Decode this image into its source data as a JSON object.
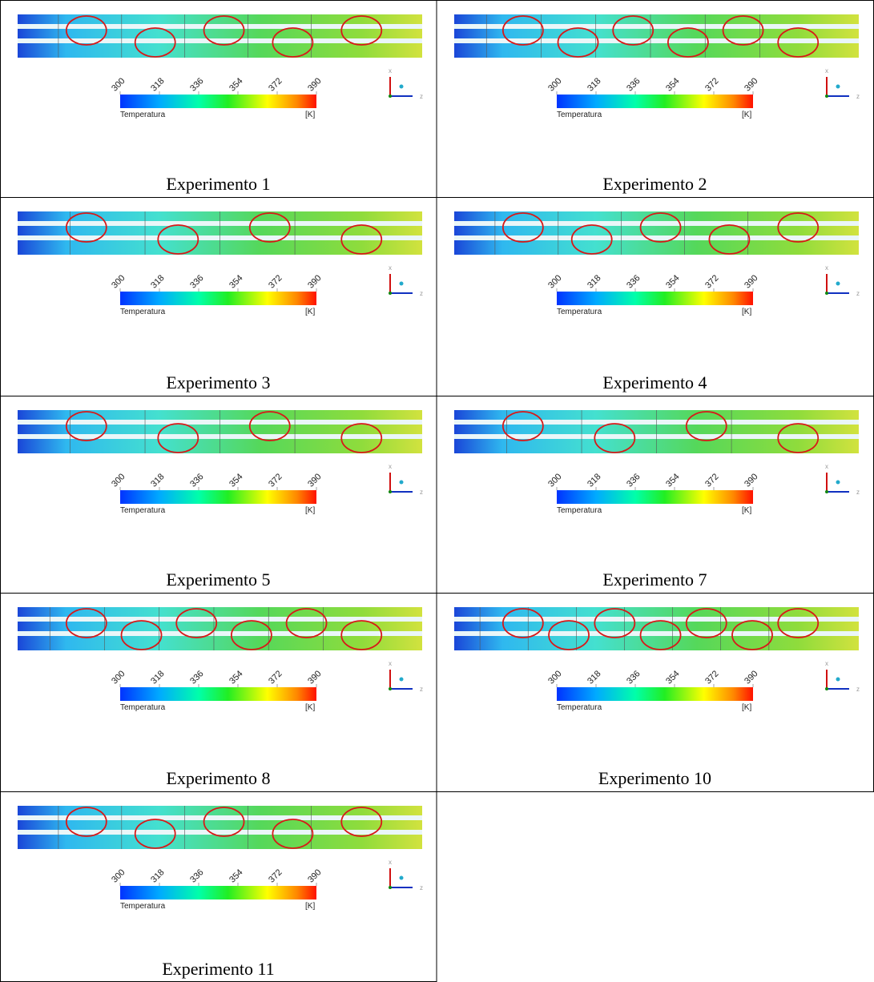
{
  "cells": [
    {
      "caption": "Experimento 1",
      "ticks": [
        300,
        318,
        336,
        354,
        372,
        390
      ],
      "legend_label": "Temperatura",
      "unit": "[K]",
      "axis_x": "x",
      "axis_z": "z"
    },
    {
      "caption": "Experimento 2",
      "ticks": [
        300,
        318,
        336,
        354,
        372,
        390
      ],
      "legend_label": "Temperatura",
      "unit": "[K]",
      "axis_x": "x",
      "axis_z": "z"
    },
    {
      "caption": "Experimento 3",
      "ticks": [
        300,
        318,
        336,
        354,
        372,
        390
      ],
      "legend_label": "Temperatura",
      "unit": "[K]",
      "axis_x": "x",
      "axis_z": "z"
    },
    {
      "caption": "Experimento 4",
      "ticks": [
        300,
        318,
        336,
        354,
        372,
        390
      ],
      "legend_label": "Temperatura",
      "unit": "[K]",
      "axis_x": "x",
      "axis_z": "z"
    },
    {
      "caption": "Experimento 5",
      "ticks": [
        300,
        318,
        336,
        354,
        372,
        390
      ],
      "legend_label": "Temperatura",
      "unit": "[K]",
      "axis_x": "x",
      "axis_z": "z"
    },
    {
      "caption": "Experimento 7",
      "ticks": [
        300,
        318,
        336,
        354,
        372,
        390
      ],
      "legend_label": "Temperatura",
      "unit": "[K]",
      "axis_x": "x",
      "axis_z": "z"
    },
    {
      "caption": "Experimento 8",
      "ticks": [
        300,
        318,
        336,
        354,
        372,
        390
      ],
      "legend_label": "Temperatura",
      "unit": "[K]",
      "axis_x": "x",
      "axis_z": "z"
    },
    {
      "caption": "Experimento 10",
      "ticks": [
        300,
        318,
        336,
        354,
        372,
        390
      ],
      "legend_label": "Temperatura",
      "unit": "[K]",
      "axis_x": "x",
      "axis_z": "z"
    },
    {
      "caption": "Experimento 11",
      "ticks": [
        300,
        318,
        336,
        354,
        372,
        390
      ],
      "legend_label": "Temperatura",
      "unit": "[K]",
      "axis_x": "x",
      "axis_z": "z"
    }
  ]
}
